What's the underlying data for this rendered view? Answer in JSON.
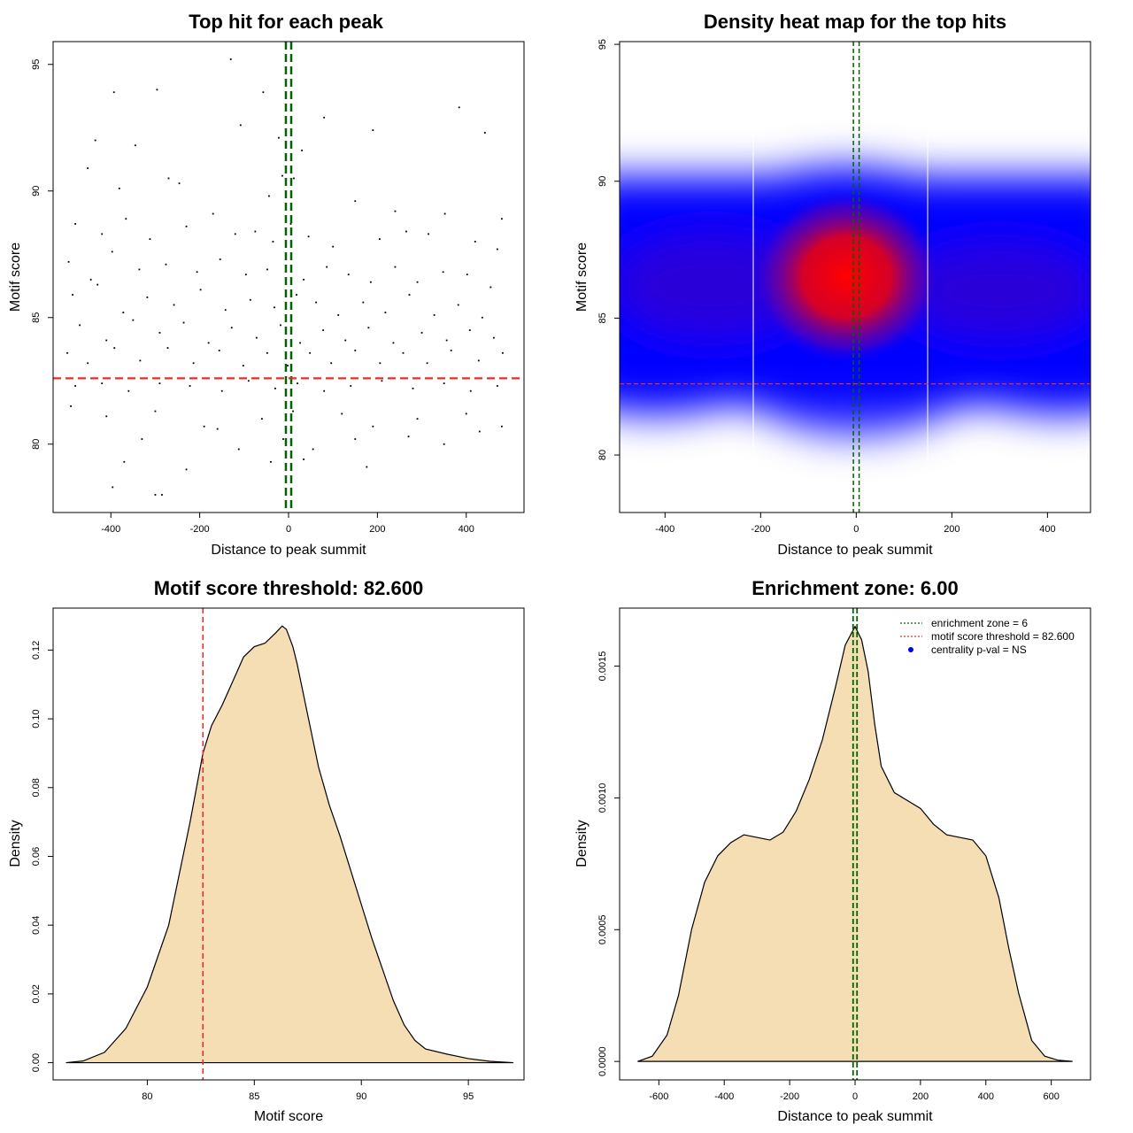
{
  "chart_data": [
    {
      "id": "scatter",
      "type": "scatter",
      "title": "Top hit for each peak",
      "xlabel": "Distance to peak summit",
      "ylabel": "Motif score",
      "xlim": [
        -530,
        530
      ],
      "ylim": [
        77.3,
        95.9
      ],
      "xticks": [
        -400,
        -200,
        0,
        200,
        400
      ],
      "yticks": [
        80,
        85,
        90,
        95
      ],
      "enrichment_zone": 6,
      "threshold": 82.6,
      "grid": false,
      "points": [
        [
          -130,
          95.2
        ],
        [
          -296,
          94.0
        ],
        [
          -393,
          93.9
        ],
        [
          -57,
          93.9
        ],
        [
          384,
          93.3
        ],
        [
          -108,
          92.6
        ],
        [
          80,
          92.9
        ],
        [
          -435,
          92.0
        ],
        [
          -345,
          91.8
        ],
        [
          -270,
          90.5
        ],
        [
          190,
          92.4
        ],
        [
          442,
          92.3
        ],
        [
          -22,
          92.1
        ],
        [
          30,
          91.6
        ],
        [
          -452,
          90.9
        ],
        [
          -381,
          90.1
        ],
        [
          -246,
          90.3
        ],
        [
          -44,
          89.8
        ],
        [
          -14,
          90.6
        ],
        [
          12,
          90.5
        ],
        [
          150,
          89.6
        ],
        [
          240,
          89.2
        ],
        [
          352,
          89.1
        ],
        [
          480,
          88.9
        ],
        [
          -480,
          88.7
        ],
        [
          -420,
          88.3
        ],
        [
          -366,
          88.9
        ],
        [
          -312,
          88.1
        ],
        [
          -230,
          88.6
        ],
        [
          -170,
          89.1
        ],
        [
          -120,
          88.3
        ],
        [
          -75,
          88.4
        ],
        [
          -35,
          88.0
        ],
        [
          5,
          88.7
        ],
        [
          45,
          88.2
        ],
        [
          100,
          87.8
        ],
        [
          205,
          88.1
        ],
        [
          265,
          88.4
        ],
        [
          315,
          88.3
        ],
        [
          420,
          88.0
        ],
        [
          470,
          87.7
        ],
        [
          -495,
          87.2
        ],
        [
          -445,
          86.5
        ],
        [
          -397,
          87.6
        ],
        [
          -336,
          86.9
        ],
        [
          -276,
          87.1
        ],
        [
          -206,
          86.8
        ],
        [
          -154,
          87.3
        ],
        [
          -96,
          86.7
        ],
        [
          -48,
          86.9
        ],
        [
          -6,
          87.4
        ],
        [
          34,
          86.5
        ],
        [
          86,
          87.0
        ],
        [
          135,
          86.7
        ],
        [
          185,
          86.4
        ],
        [
          240,
          87.0
        ],
        [
          290,
          86.4
        ],
        [
          348,
          86.8
        ],
        [
          402,
          86.7
        ],
        [
          455,
          86.2
        ],
        [
          -486,
          85.9
        ],
        [
          -430,
          86.3
        ],
        [
          -372,
          85.2
        ],
        [
          -318,
          85.8
        ],
        [
          -258,
          85.5
        ],
        [
          -198,
          86.1
        ],
        [
          -142,
          85.3
        ],
        [
          -86,
          85.7
        ],
        [
          -32,
          85.4
        ],
        [
          18,
          85.9
        ],
        [
          62,
          85.6
        ],
        [
          112,
          85.1
        ],
        [
          168,
          85.6
        ],
        [
          218,
          85.2
        ],
        [
          272,
          85.9
        ],
        [
          328,
          85.1
        ],
        [
          382,
          85.5
        ],
        [
          436,
          85.0
        ],
        [
          -470,
          84.7
        ],
        [
          -410,
          84.1
        ],
        [
          -350,
          84.9
        ],
        [
          -290,
          84.4
        ],
        [
          -236,
          84.8
        ],
        [
          -180,
          84.0
        ],
        [
          -128,
          84.6
        ],
        [
          -72,
          84.2
        ],
        [
          -18,
          84.7
        ],
        [
          26,
          84.0
        ],
        [
          78,
          84.5
        ],
        [
          128,
          84.1
        ],
        [
          180,
          84.6
        ],
        [
          236,
          84.0
        ],
        [
          300,
          84.4
        ],
        [
          356,
          84.1
        ],
        [
          408,
          84.5
        ],
        [
          462,
          84.2
        ],
        [
          -498,
          83.6
        ],
        [
          -452,
          83.2
        ],
        [
          -392,
          83.8
        ],
        [
          -334,
          83.3
        ],
        [
          -272,
          83.8
        ],
        [
          -214,
          83.2
        ],
        [
          -156,
          83.7
        ],
        [
          -102,
          83.1
        ],
        [
          -48,
          83.6
        ],
        [
          -2,
          83.1
        ],
        [
          48,
          83.6
        ],
        [
          96,
          83.2
        ],
        [
          150,
          83.7
        ],
        [
          206,
          83.2
        ],
        [
          258,
          83.6
        ],
        [
          312,
          83.2
        ],
        [
          366,
          83.7
        ],
        [
          428,
          83.3
        ],
        [
          482,
          83.6
        ],
        [
          -480,
          82.3
        ],
        [
          -420,
          82.4
        ],
        [
          -360,
          82.1
        ],
        [
          -290,
          82.4
        ],
        [
          -222,
          82.3
        ],
        [
          -150,
          82.1
        ],
        [
          -90,
          82.5
        ],
        [
          -30,
          82.2
        ],
        [
          20,
          82.4
        ],
        [
          80,
          82.1
        ],
        [
          140,
          82.3
        ],
        [
          210,
          82.5
        ],
        [
          280,
          82.2
        ],
        [
          350,
          82.4
        ],
        [
          410,
          82.1
        ],
        [
          470,
          82.3
        ],
        [
          -490,
          81.5
        ],
        [
          -410,
          81.1
        ],
        [
          -300,
          81.3
        ],
        [
          -190,
          80.7
        ],
        [
          -60,
          81.0
        ],
        [
          10,
          81.3
        ],
        [
          120,
          81.2
        ],
        [
          190,
          80.7
        ],
        [
          290,
          81.0
        ],
        [
          400,
          81.2
        ],
        [
          480,
          80.7
        ],
        [
          -330,
          80.2
        ],
        [
          -160,
          80.6
        ],
        [
          -12,
          80.2
        ],
        [
          55,
          79.8
        ],
        [
          150,
          80.2
        ],
        [
          270,
          80.3
        ],
        [
          350,
          80.0
        ],
        [
          430,
          80.5
        ],
        [
          -370,
          79.3
        ],
        [
          -230,
          79.0
        ],
        [
          -112,
          79.8
        ],
        [
          -40,
          79.3
        ],
        [
          34,
          79.4
        ],
        [
          176,
          79.1
        ],
        [
          -396,
          78.3
        ],
        [
          -300,
          78.0
        ],
        [
          -285,
          78.0
        ]
      ]
    },
    {
      "id": "heatmap",
      "type": "heatmap",
      "title": "Density heat map for the top hits",
      "xlabel": "Distance to peak summit",
      "ylabel": "Motif score",
      "xlim": [
        -495,
        490
      ],
      "ylim": [
        77.9,
        95.1
      ],
      "xticks": [
        -400,
        -200,
        0,
        200,
        400
      ],
      "yticks": [
        80,
        85,
        90,
        95
      ],
      "enrichment_zone": 6,
      "threshold": 82.6,
      "colors": [
        "#ffffff",
        "#0000ff",
        "#ff0000"
      ],
      "density_hotspots": [
        {
          "x": -20,
          "y": 86.5,
          "weight": 1.0
        },
        {
          "x": -300,
          "y": 86.0,
          "weight": 0.55
        },
        {
          "x": 300,
          "y": 86.3,
          "weight": 0.55
        },
        {
          "x": 0,
          "y": 84.0,
          "weight": 0.45
        },
        {
          "x": -420,
          "y": 84.5,
          "weight": 0.3
        },
        {
          "x": 430,
          "y": 84.5,
          "weight": 0.3
        }
      ]
    },
    {
      "id": "score-density",
      "type": "area",
      "title": "Motif score threshold: 82.600",
      "xlabel": "Motif score",
      "ylabel": "Density",
      "xlim": [
        75.6,
        97.6
      ],
      "ylim": [
        -0.005,
        0.1322
      ],
      "xticks": [
        80,
        85,
        90,
        95
      ],
      "yticks": [
        "0.00",
        "0.02",
        "0.04",
        "0.06",
        "0.08",
        "0.10",
        "0.12"
      ],
      "fill": "#f5deb3",
      "threshold": 82.6,
      "x": [
        76.2,
        77.0,
        78.0,
        79.0,
        80.0,
        81.0,
        82.0,
        82.6,
        83.0,
        83.5,
        84.0,
        84.5,
        85.0,
        85.5,
        86.0,
        86.3,
        86.5,
        86.8,
        87.0,
        87.5,
        88.0,
        88.5,
        89.0,
        89.5,
        90.0,
        90.5,
        91.0,
        91.5,
        92.0,
        92.5,
        93.0,
        94.0,
        95.0,
        96.0,
        97.1
      ],
      "y": [
        0.0,
        0.0005,
        0.003,
        0.01,
        0.022,
        0.04,
        0.07,
        0.09,
        0.098,
        0.104,
        0.111,
        0.118,
        0.121,
        0.122,
        0.125,
        0.127,
        0.126,
        0.121,
        0.116,
        0.101,
        0.086,
        0.075,
        0.066,
        0.056,
        0.046,
        0.036,
        0.027,
        0.018,
        0.011,
        0.0065,
        0.004,
        0.0025,
        0.0012,
        0.0004,
        0.0
      ]
    },
    {
      "id": "distance-density",
      "type": "area",
      "title": "Enrichment zone: 6.00",
      "xlabel": "Distance to peak summit",
      "ylabel": "Density",
      "xlim": [
        -720,
        720
      ],
      "ylim": [
        -7e-05,
        0.00172
      ],
      "xticks": [
        -600,
        -400,
        -200,
        0,
        200,
        400,
        600
      ],
      "yticks": [
        "0.0000",
        "0.0005",
        "0.0010",
        "0.0015"
      ],
      "fill": "#f5deb3",
      "enrichment_zone": 6,
      "x": [
        -665,
        -620,
        -575,
        -540,
        -500,
        -460,
        -420,
        -380,
        -340,
        -300,
        -260,
        -220,
        -180,
        -140,
        -100,
        -60,
        -30,
        0,
        20,
        40,
        60,
        80,
        120,
        160,
        200,
        240,
        280,
        320,
        360,
        400,
        440,
        470,
        500,
        540,
        580,
        620,
        665
      ],
      "y": [
        0.0,
        2e-05,
        0.0001,
        0.00025,
        0.0005,
        0.00068,
        0.00078,
        0.00083,
        0.00086,
        0.00085,
        0.00084,
        0.00087,
        0.00095,
        0.00107,
        0.00122,
        0.00142,
        0.00158,
        0.00165,
        0.0016,
        0.00148,
        0.00128,
        0.00112,
        0.00102,
        0.00099,
        0.00096,
        0.0009,
        0.00086,
        0.00085,
        0.00084,
        0.00078,
        0.00062,
        0.00043,
        0.00026,
        8e-05,
        2e-05,
        5e-06,
        0.0
      ]
    }
  ],
  "legend": {
    "zone": "enrichment zone = 6",
    "threshold": "motif score threshold = 82.600",
    "pval": "centrality p-val = NS"
  }
}
